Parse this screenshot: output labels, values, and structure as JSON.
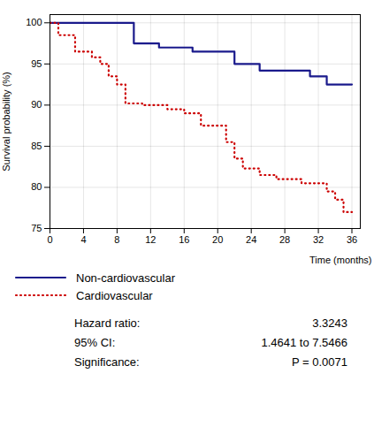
{
  "chart_data": {
    "type": "step",
    "xlabel": "Time (months)",
    "ylabel": "Survival probability (%)",
    "series": [
      {
        "name": "Non-cardiovascular",
        "color": "#1a1a8c",
        "line_style": "solid",
        "x": [
          0,
          10,
          10,
          13,
          13,
          17,
          17,
          22,
          22,
          25,
          25,
          31,
          31,
          33,
          33,
          36
        ],
        "values": [
          100,
          100,
          97.5,
          97.5,
          97.0,
          97.0,
          96.5,
          96.5,
          95.0,
          95.0,
          94.2,
          94.2,
          93.5,
          93.5,
          92.5,
          92.5
        ]
      },
      {
        "name": "Cardiovascular",
        "color": "#cc0000",
        "line_style": "dotted",
        "x": [
          0,
          1,
          1,
          3,
          3,
          5,
          5,
          6,
          6,
          7,
          7,
          8,
          8,
          9,
          9,
          11,
          11,
          14,
          14,
          16,
          16,
          18,
          18,
          21,
          21,
          22,
          22,
          23,
          23,
          25,
          25,
          27,
          27,
          30,
          30,
          33,
          33,
          34,
          34,
          35,
          35,
          36
        ],
        "values": [
          100,
          100,
          98.5,
          98.5,
          96.5,
          96.5,
          95.8,
          95.8,
          95.0,
          95.0,
          93.5,
          93.5,
          92.5,
          92.5,
          90.2,
          90.2,
          90.0,
          90.0,
          89.5,
          89.5,
          89.0,
          89.0,
          87.5,
          87.5,
          85.5,
          85.5,
          83.5,
          83.5,
          82.3,
          82.3,
          81.5,
          81.5,
          81.0,
          81.0,
          80.5,
          80.5,
          79.5,
          79.5,
          78.5,
          78.5,
          77.0,
          77.0
        ]
      }
    ],
    "xlim": [
      0,
      37
    ],
    "ylim": [
      75,
      101
    ],
    "xticks": [
      0,
      4,
      8,
      12,
      16,
      20,
      24,
      28,
      32,
      36
    ],
    "yticks": [
      75,
      80,
      85,
      90,
      95,
      100
    ],
    "grid": true,
    "legend": "bottom",
    "annotations": [
      {
        "label": "Hazard ratio:",
        "value": "3.3243"
      },
      {
        "label": "95% CI:",
        "value": "1.4641 to 7.5466"
      },
      {
        "label": "Significance:",
        "value": "P = 0.0071"
      }
    ]
  }
}
